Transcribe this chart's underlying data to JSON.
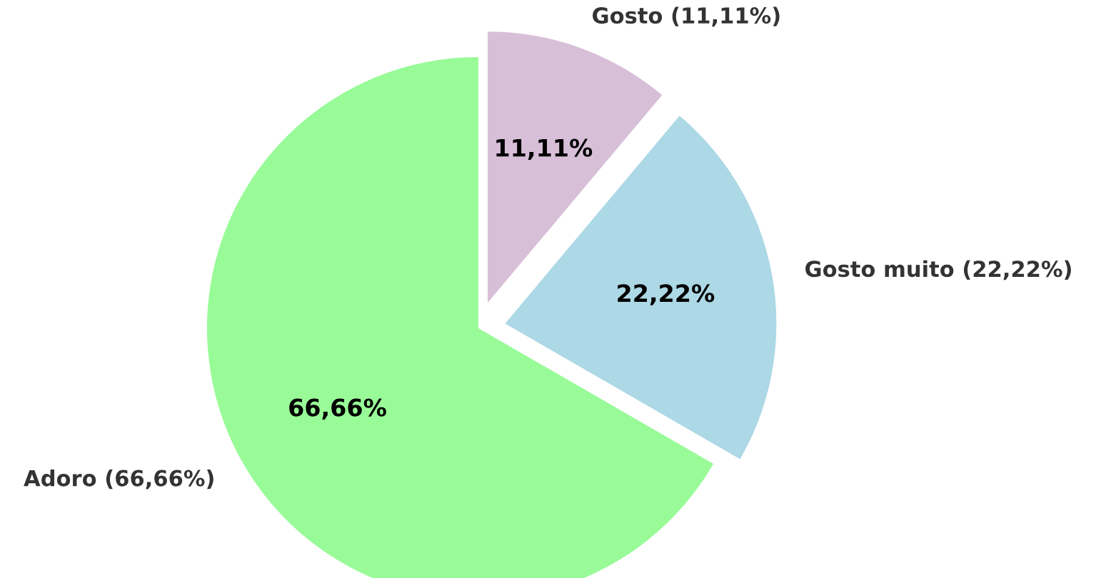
{
  "chart_data": {
    "type": "pie",
    "categories": [
      "Gosto (11,11%)",
      "Gosto muito (22,22%)",
      "Adoro (66,66%)"
    ],
    "values": [
      11.11,
      22.22,
      66.66
    ],
    "colors": [
      "#d8bfd8",
      "#add8e6",
      "#98fb98"
    ],
    "value_labels": [
      "11,11%",
      "22,22%",
      "66,66%"
    ]
  }
}
